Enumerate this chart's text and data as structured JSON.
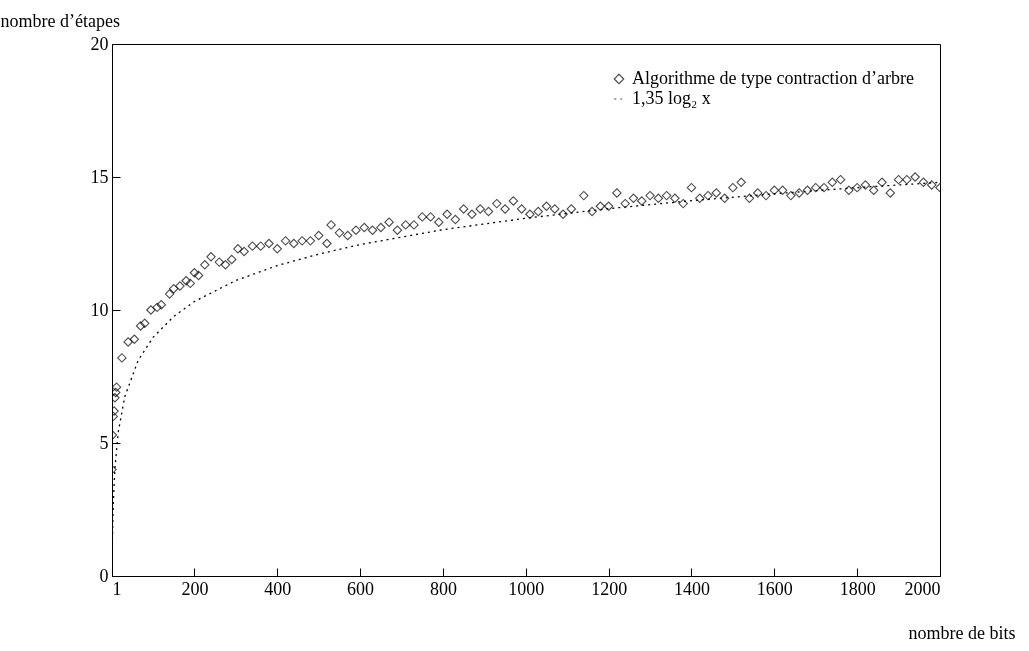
{
  "chart_data": {
    "type": "scatter",
    "xlabel": "nombre de bits",
    "ylabel": "nombre d’étapes",
    "xlim": [
      1,
      2000
    ],
    "ylim": [
      0,
      20
    ],
    "xticks": [
      1,
      200,
      400,
      600,
      800,
      1000,
      1200,
      1400,
      1600,
      1800,
      2000
    ],
    "yticks": [
      0,
      5,
      10,
      15,
      20
    ],
    "grid": false,
    "legend": "top right",
    "series": [
      {
        "name": "Algorithme de type contraction d’arbre",
        "marker": "diamond",
        "color": "#000000",
        "x": [
          1,
          2,
          4,
          6,
          8,
          10,
          12,
          25,
          40,
          55,
          70,
          80,
          95,
          110,
          120,
          140,
          150,
          165,
          180,
          190,
          200,
          210,
          225,
          240,
          260,
          275,
          290,
          305,
          320,
          340,
          360,
          380,
          400,
          420,
          440,
          460,
          480,
          500,
          520,
          530,
          550,
          570,
          590,
          610,
          630,
          650,
          670,
          690,
          710,
          730,
          750,
          770,
          790,
          810,
          830,
          850,
          870,
          890,
          910,
          930,
          950,
          970,
          990,
          1010,
          1030,
          1050,
          1070,
          1090,
          1110,
          1140,
          1160,
          1180,
          1200,
          1220,
          1240,
          1260,
          1280,
          1300,
          1320,
          1340,
          1360,
          1380,
          1400,
          1420,
          1440,
          1460,
          1480,
          1500,
          1520,
          1540,
          1560,
          1580,
          1600,
          1620,
          1640,
          1660,
          1680,
          1700,
          1720,
          1740,
          1760,
          1780,
          1800,
          1820,
          1840,
          1860,
          1880,
          1900,
          1920,
          1940,
          1960,
          1980,
          2000
        ],
        "values": [
          4.0,
          5.3,
          6.0,
          6.2,
          6.7,
          6.9,
          7.1,
          8.2,
          8.8,
          8.9,
          9.4,
          9.5,
          10.0,
          10.1,
          10.2,
          10.6,
          10.8,
          10.9,
          11.1,
          11.0,
          11.4,
          11.3,
          11.7,
          12.0,
          11.8,
          11.7,
          11.9,
          12.3,
          12.2,
          12.4,
          12.4,
          12.5,
          12.3,
          12.6,
          12.5,
          12.6,
          12.6,
          12.8,
          12.5,
          13.2,
          12.9,
          12.8,
          13.0,
          13.1,
          13.0,
          13.1,
          13.3,
          13.0,
          13.2,
          13.2,
          13.5,
          13.5,
          13.3,
          13.6,
          13.4,
          13.8,
          13.6,
          13.8,
          13.7,
          14.0,
          13.8,
          14.1,
          13.8,
          13.6,
          13.7,
          13.9,
          13.8,
          13.6,
          13.8,
          14.3,
          13.7,
          13.9,
          13.9,
          14.4,
          14.0,
          14.2,
          14.1,
          14.3,
          14.2,
          14.3,
          14.2,
          14.0,
          14.6,
          14.2,
          14.3,
          14.4,
          14.2,
          14.6,
          14.8,
          14.2,
          14.4,
          14.3,
          14.5,
          14.5,
          14.3,
          14.4,
          14.5,
          14.6,
          14.6,
          14.8,
          14.9,
          14.5,
          14.6,
          14.7,
          14.5,
          14.8,
          14.4,
          14.9,
          14.9,
          15.0,
          14.8,
          14.7,
          14.6
        ]
      },
      {
        "name": "1,35 log₂ x",
        "type": "line",
        "color": "#000000",
        "line_style": "dotted",
        "x": [
          1,
          2,
          4,
          8,
          16,
          32,
          64,
          100,
          150,
          200,
          300,
          400,
          500,
          600,
          800,
          1000,
          1200,
          1400,
          1600,
          1800,
          2000
        ],
        "values": [
          0,
          1.35,
          2.7,
          4.05,
          5.4,
          6.75,
          8.1,
          8.97,
          9.76,
          10.32,
          11.11,
          11.67,
          12.1,
          12.46,
          13.02,
          13.45,
          13.81,
          14.11,
          14.37,
          14.6,
          14.8
        ]
      }
    ]
  }
}
